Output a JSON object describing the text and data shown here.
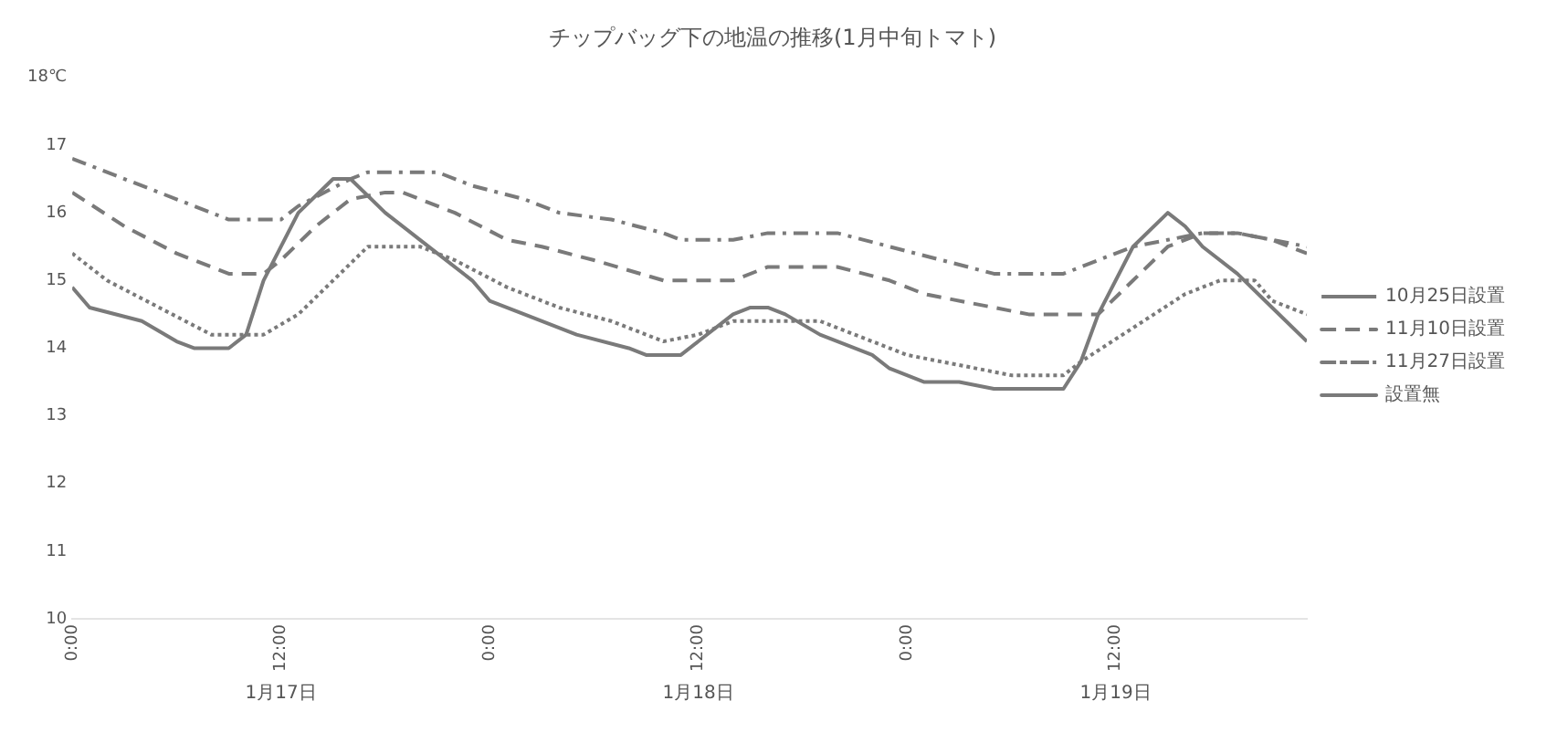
{
  "chart_data": {
    "type": "line",
    "title": "チップバッグ下の地温の推移(1月中旬トマト)",
    "xlim": [
      "--01-17T00:00",
      "--01-19T23:00"
    ],
    "xticks": [
      {
        "value": "--01-17T00:00",
        "label": "0:00"
      },
      {
        "value": "--01-17T12:00",
        "label": "12:00"
      },
      {
        "value": "--01-18T00:00",
        "label": "0:00"
      },
      {
        "value": "--01-18T12:00",
        "label": "12:00"
      },
      {
        "value": "--01-19T00:00",
        "label": "0:00"
      },
      {
        "value": "--01-19T12:00",
        "label": "12:00"
      }
    ],
    "ylim": [
      10,
      18
    ],
    "yticks": [
      10,
      11,
      12,
      13,
      14,
      15,
      16,
      17,
      {
        "value": 18,
        "label": "18℃"
      }
    ],
    "grid": false,
    "legend": "right",
    "marker": "none",
    "annotations": [
      "1月17日",
      "1月18日",
      "1月19日"
    ],
    "series": [
      {
        "name": "10月25日設置",
        "color": "#7a7a7a",
        "line_style": "dotted",
        "x": [
          "--01-17T00:00",
          "--01-17T02:00",
          "--01-17T05:00",
          "--01-17T08:00",
          "--01-17T11:00",
          "--01-17T13:00",
          "--01-17T15:00",
          "--01-17T17:00",
          "--01-17T20:00",
          "--01-17T22:00",
          "--01-18T01:00",
          "--01-18T04:00",
          "--01-18T07:00",
          "--01-18T10:00",
          "--01-18T12:00",
          "--01-18T14:00",
          "--01-18T19:00",
          "--01-18T21:00",
          "--01-19T00:00",
          "--01-19T06:00",
          "--01-19T09:00",
          "--01-19T10:00",
          "--01-19T13:00",
          "--01-19T16:00",
          "--01-19T18:00",
          "--01-19T20:00",
          "--01-19T21:00",
          "--01-19T23:00"
        ],
        "values": [
          15.4,
          15.0,
          14.6,
          14.2,
          14.2,
          14.5,
          15.0,
          15.5,
          15.5,
          15.3,
          14.9,
          14.6,
          14.4,
          14.1,
          14.2,
          14.4,
          14.4,
          14.2,
          13.9,
          13.6,
          13.6,
          13.8,
          14.3,
          14.8,
          15.0,
          15.0,
          14.7,
          14.5
        ]
      },
      {
        "name": "11月10日設置",
        "color": "#7a7a7a",
        "line_style": "dashed",
        "x": [
          "--01-17T00:00",
          "--01-17T03:00",
          "--01-17T06:00",
          "--01-17T09:00",
          "--01-17T11:00",
          "--01-17T12:00",
          "--01-17T14:00",
          "--01-17T16:00",
          "--01-17T18:00",
          "--01-17T19:00",
          "--01-17T22:00",
          "--01-18T01:00",
          "--01-18T03:00",
          "--01-18T06:00",
          "--01-18T10:00",
          "--01-18T14:00",
          "--01-18T16:00",
          "--01-18T20:00",
          "--01-18T23:00",
          "--01-19T01:00",
          "--01-19T07:00",
          "--01-19T11:00",
          "--01-19T13:00",
          "--01-19T15:00",
          "--01-19T17:00",
          "--01-19T19:00",
          "--01-19T21:00",
          "--01-19T23:00"
        ],
        "values": [
          16.3,
          15.8,
          15.4,
          15.1,
          15.1,
          15.3,
          15.8,
          16.2,
          16.3,
          16.3,
          16.0,
          15.6,
          15.5,
          15.3,
          15.0,
          15.0,
          15.2,
          15.2,
          15.0,
          14.8,
          14.5,
          14.5,
          15.0,
          15.5,
          15.7,
          15.7,
          15.6,
          15.4
        ]
      },
      {
        "name": "11月27日設置",
        "color": "#7a7a7a",
        "line_style": "dashdot",
        "x": [
          "--01-17T00:00",
          "--01-17T03:00",
          "--01-17T06:00",
          "--01-17T09:00",
          "--01-17T12:00",
          "--01-17T13:00",
          "--01-17T16:00",
          "--01-17T17:00",
          "--01-17T21:00",
          "--01-17T23:00",
          "--01-18T02:00",
          "--01-18T04:00",
          "--01-18T07:00",
          "--01-18T10:00",
          "--01-18T11:00",
          "--01-18T14:00",
          "--01-18T16:00",
          "--01-18T20:00",
          "--01-18T23:00",
          "--01-19T02:00",
          "--01-19T05:00",
          "--01-19T09:00",
          "--01-19T10:00",
          "--01-19T13:00",
          "--01-19T15:00",
          "--01-19T17:00",
          "--01-19T19:00",
          "--01-19T21:00",
          "--01-19T23:00"
        ],
        "values": [
          16.8,
          16.5,
          16.2,
          15.9,
          15.9,
          16.1,
          16.5,
          16.6,
          16.6,
          16.4,
          16.2,
          16.0,
          15.9,
          15.7,
          15.6,
          15.6,
          15.7,
          15.7,
          15.5,
          15.3,
          15.1,
          15.1,
          15.2,
          15.5,
          15.6,
          15.7,
          15.7,
          15.6,
          15.5
        ]
      },
      {
        "name": "設置無",
        "color": "#7a7a7a",
        "line_style": "solid",
        "x": [
          "--01-17T00:00",
          "--01-17T01:00",
          "--01-17T04:00",
          "--01-17T06:00",
          "--01-17T07:00",
          "--01-17T09:00",
          "--01-17T10:00",
          "--01-17T11:00",
          "--01-17T13:00",
          "--01-17T15:00",
          "--01-17T16:00",
          "--01-17T18:00",
          "--01-17T20:00",
          "--01-17T23:00",
          "--01-18T00:00",
          "--01-18T02:00",
          "--01-18T05:00",
          "--01-18T08:00",
          "--01-18T09:00",
          "--01-18T11:00",
          "--01-18T12:00",
          "--01-18T14:00",
          "--01-18T15:00",
          "--01-18T16:00",
          "--01-18T17:00",
          "--01-18T19:00",
          "--01-18T22:00",
          "--01-18T23:00",
          "--01-19T01:00",
          "--01-19T03:00",
          "--01-19T05:00",
          "--01-19T09:00",
          "--01-19T10:00",
          "--01-19T11:00",
          "--01-19T13:00",
          "--01-19T15:00",
          "--01-19T16:00",
          "--01-19T17:00",
          "--01-19T19:00",
          "--01-19T21:00",
          "--01-19T23:00"
        ],
        "values": [
          14.9,
          14.6,
          14.4,
          14.1,
          14.0,
          14.0,
          14.2,
          15.0,
          16.0,
          16.5,
          16.5,
          16.0,
          15.6,
          15.0,
          14.7,
          14.5,
          14.2,
          14.0,
          13.9,
          13.9,
          14.1,
          14.5,
          14.6,
          14.6,
          14.5,
          14.2,
          13.9,
          13.7,
          13.5,
          13.5,
          13.4,
          13.4,
          13.8,
          14.5,
          15.5,
          16.0,
          15.8,
          15.5,
          15.1,
          14.6,
          14.1
        ]
      }
    ]
  }
}
